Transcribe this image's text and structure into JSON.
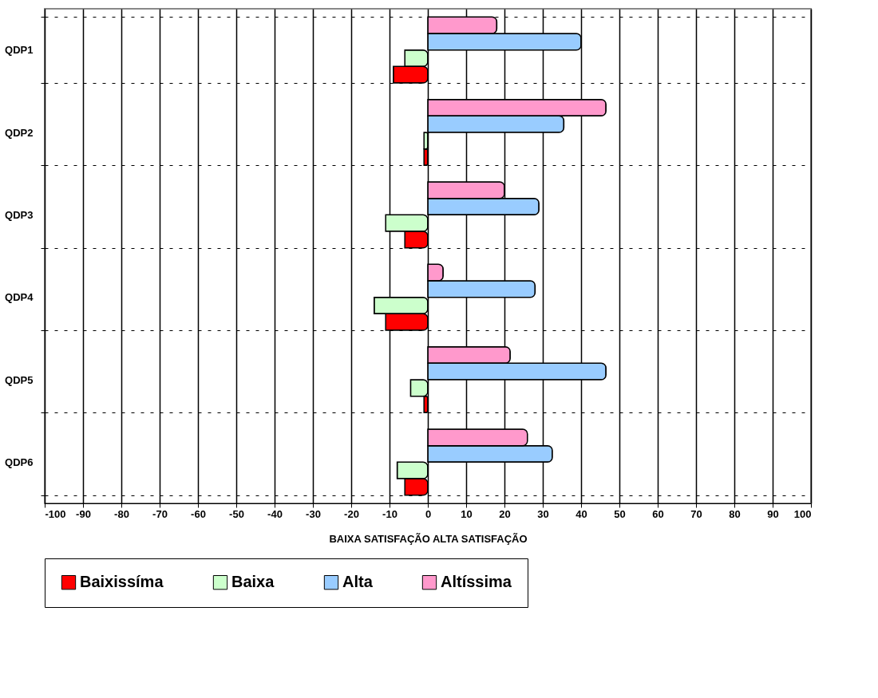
{
  "chart_data": {
    "type": "bar",
    "orientation": "horizontal",
    "xlabel": "BAIXA SATISFAÇÃO     ALTA SATISFAÇÃO",
    "categories": [
      "QDP1",
      "QDP2",
      "QDP3",
      "QDP4",
      "QDP5",
      "QDP6"
    ],
    "series": [
      {
        "name": "Baixissíma",
        "color": "#ff0000",
        "values": [
          -9,
          -1,
          -6,
          -11,
          -1,
          -6
        ]
      },
      {
        "name": "Baixa",
        "color": "#ccffcc",
        "values": [
          -6,
          -1,
          -11,
          -14,
          -4.5,
          -8
        ]
      },
      {
        "name": "Alta",
        "color": "#99ccff",
        "values": [
          40,
          35.5,
          29,
          28,
          46.5,
          32.5
        ]
      },
      {
        "name": "Altíssima",
        "color": "#ff99cc",
        "values": [
          18,
          46.5,
          20,
          4,
          21.5,
          26
        ]
      }
    ],
    "xlim": [
      -100,
      100
    ],
    "xticks": [
      -100,
      -90,
      -80,
      -70,
      -60,
      -50,
      -40,
      -30,
      -20,
      -10,
      0,
      10,
      20,
      30,
      40,
      50,
      60,
      70,
      80,
      90,
      100
    ],
    "grid": true,
    "legend": "bottom"
  }
}
